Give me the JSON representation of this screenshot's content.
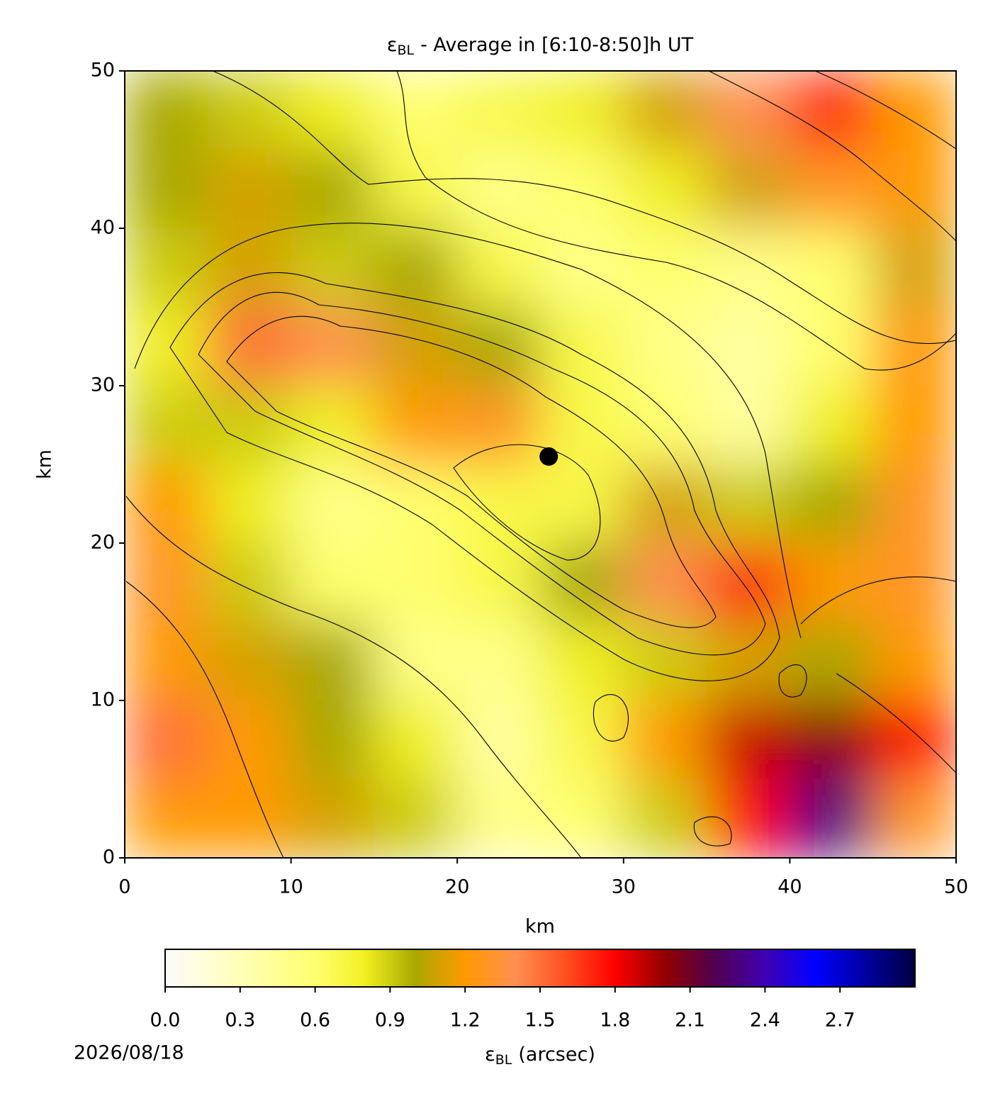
{
  "chart_data": {
    "type": "heatmap",
    "title": {
      "symbol": "ε",
      "subscript": "BL",
      "text": "- Average in [6:10-8:50]h UT"
    },
    "x_label": "km",
    "y_label": "km",
    "xlim": [
      0,
      50
    ],
    "ylim": [
      0,
      50
    ],
    "xticks": [
      0,
      10,
      20,
      30,
      40,
      50
    ],
    "yticks": [
      0,
      10,
      20,
      30,
      40,
      50
    ],
    "field": [
      [
        1.0,
        0.9,
        0.8,
        0.6,
        0.7,
        0.8,
        1.1,
        1.4,
        1.7,
        1.2
      ],
      [
        1.0,
        1.1,
        1.0,
        0.7,
        0.5,
        0.6,
        0.8,
        1.1,
        1.3,
        1.2
      ],
      [
        0.9,
        1.1,
        0.9,
        1.0,
        0.7,
        0.5,
        0.6,
        0.5,
        0.6,
        1.1
      ],
      [
        0.8,
        1.5,
        1.4,
        1.1,
        1.0,
        0.7,
        0.5,
        0.4,
        0.6,
        1.2
      ],
      [
        0.9,
        0.9,
        0.8,
        1.2,
        1.3,
        0.7,
        0.6,
        0.4,
        0.8,
        1.2
      ],
      [
        1.2,
        0.8,
        0.5,
        0.6,
        0.7,
        0.7,
        1.1,
        0.9,
        1.0,
        1.3
      ],
      [
        1.3,
        0.9,
        0.6,
        0.6,
        0.7,
        1.0,
        1.4,
        1.7,
        1.2,
        1.3
      ],
      [
        1.2,
        1.1,
        1.0,
        0.5,
        0.5,
        0.8,
        0.9,
        1.1,
        1.0,
        1.2
      ],
      [
        1.5,
        1.2,
        1.0,
        0.8,
        0.4,
        0.7,
        1.2,
        1.9,
        2.0,
        1.8
      ],
      [
        1.2,
        1.2,
        1.1,
        0.9,
        0.5,
        0.6,
        0.9,
        1.8,
        2.3,
        1.3
      ]
    ],
    "marker": {
      "x": 25.5,
      "y": 25.5
    },
    "colorbar": {
      "label": {
        "symbol": "ε",
        "subscript": "BL",
        "text": "(arcsec)"
      },
      "lim": [
        0,
        3.0
      ],
      "ticks": [
        {
          "value": 0,
          "label": "0.0"
        },
        0.3,
        0.6,
        0.9,
        1.2,
        1.5,
        1.8,
        2.1,
        2.4,
        2.7
      ],
      "colors": [
        "#fbfbfb",
        "#ffffd0",
        "#ffffa0",
        "#ffff70",
        "#f0f020",
        "#a8a800",
        "#ff9900",
        "#ff9050",
        "#ff5020",
        "#ff0000",
        "#900000",
        "#500050",
        "#4000b0",
        "#0000ff",
        "#0000a0",
        "#000040"
      ]
    },
    "date": "2026/08/18"
  }
}
